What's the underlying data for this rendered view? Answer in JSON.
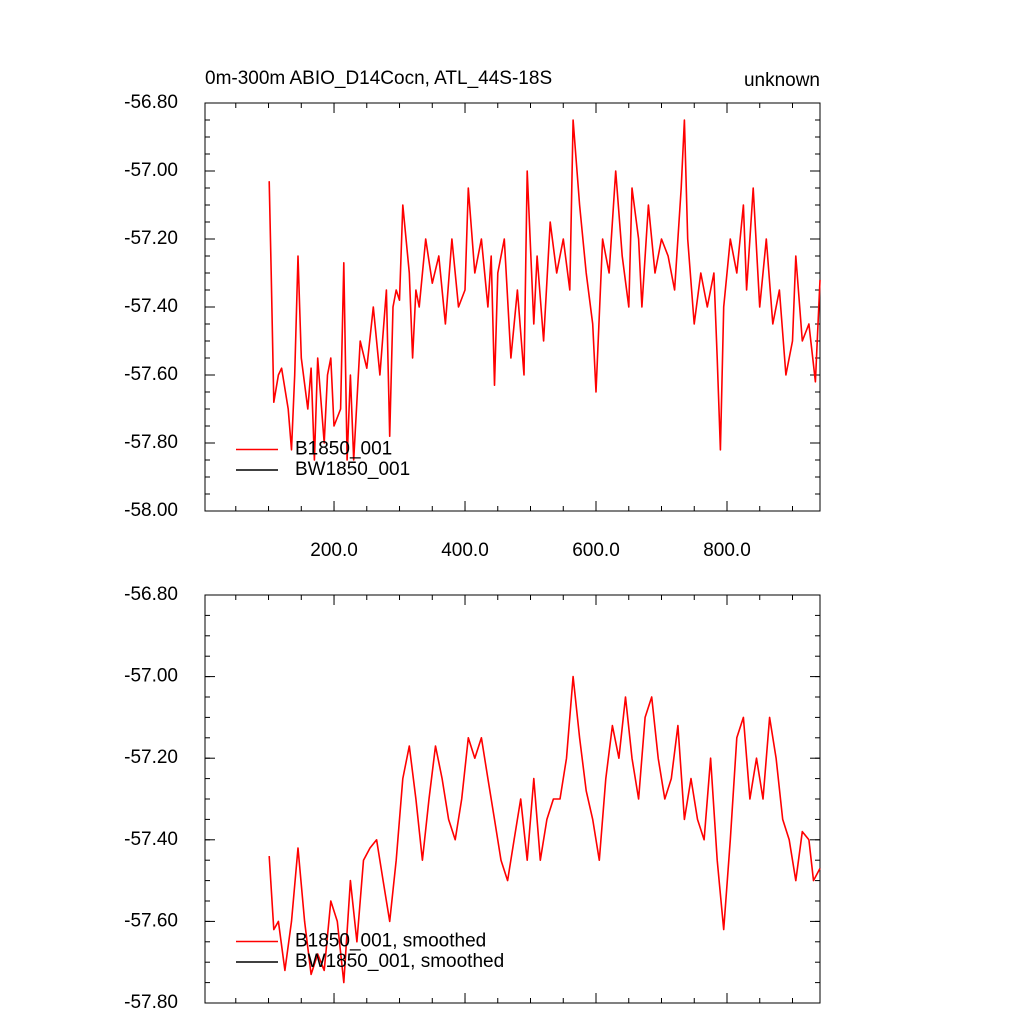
{
  "chart_data": [
    {
      "type": "line",
      "title": "0m-300m ABIO_D14Cocn, ATL_44S-18S",
      "right_title": "unknown",
      "xlim": [
        3,
        942
      ],
      "xticks": [
        {
          "value": 200,
          "label": "200.0"
        },
        {
          "value": 400,
          "label": "400.0"
        },
        {
          "value": 600,
          "label": "600.0"
        },
        {
          "value": 800,
          "label": "800.0"
        }
      ],
      "ylim": [
        -58.0,
        -56.8
      ],
      "yticks": [
        {
          "value": -58.0,
          "label": "-58.00"
        },
        {
          "value": -57.8,
          "label": "-57.80"
        },
        {
          "value": -57.6,
          "label": "-57.60"
        },
        {
          "value": -57.4,
          "label": "-57.40"
        },
        {
          "value": -57.2,
          "label": "-57.20"
        },
        {
          "value": -57.0,
          "label": "-57.00"
        },
        {
          "value": -56.8,
          "label": "-56.80"
        }
      ],
      "legend": "lower left",
      "x": [
        101,
        104,
        108,
        115,
        120,
        130,
        135,
        140,
        145,
        150,
        160,
        165,
        170,
        175,
        185,
        190,
        195,
        200,
        210,
        215,
        220,
        225,
        230,
        240,
        250,
        260,
        270,
        280,
        285,
        290,
        295,
        300,
        305,
        315,
        320,
        325,
        330,
        340,
        350,
        360,
        370,
        380,
        390,
        400,
        405,
        415,
        425,
        435,
        440,
        445,
        450,
        460,
        470,
        480,
        490,
        495,
        505,
        510,
        520,
        530,
        540,
        550,
        560,
        565,
        575,
        585,
        595,
        600,
        610,
        620,
        630,
        640,
        650,
        655,
        665,
        670,
        680,
        690,
        700,
        710,
        720,
        730,
        735,
        740,
        750,
        760,
        770,
        780,
        785,
        790,
        795,
        805,
        815,
        825,
        830,
        840,
        850,
        860,
        870,
        880,
        890,
        900,
        905,
        915,
        925,
        935,
        942
      ],
      "series": [
        {
          "name": "BW1850_001",
          "color": "#000000",
          "values": [
            null,
            null,
            null,
            null,
            null,
            null,
            null,
            null,
            null,
            null,
            null,
            null,
            null,
            null,
            null,
            null,
            null,
            null,
            null,
            null,
            null,
            null,
            null,
            null,
            null,
            null,
            null,
            null,
            null,
            null,
            null,
            null,
            null,
            null,
            null,
            null,
            null,
            null,
            null,
            null,
            null,
            null,
            null,
            null,
            null,
            null,
            null,
            null,
            null,
            null,
            null,
            null,
            null,
            null,
            null,
            null,
            null,
            null,
            null,
            null,
            null,
            null,
            null,
            null,
            null,
            null,
            null,
            null,
            null,
            null,
            null,
            null,
            null,
            null,
            null,
            null,
            null,
            null,
            null,
            null,
            null,
            null,
            null,
            null,
            null,
            null,
            null,
            null,
            null,
            null,
            null,
            null,
            null,
            null,
            null,
            null,
            null,
            null,
            null,
            null,
            null,
            null,
            null,
            null,
            null,
            null,
            null
          ]
        },
        {
          "name": "B1850_001",
          "color": "#ff0000",
          "values": [
            -57.03,
            -57.3,
            -57.68,
            -57.6,
            -57.58,
            -57.7,
            -57.82,
            -57.6,
            -57.25,
            -57.55,
            -57.7,
            -57.58,
            -57.85,
            -57.55,
            -57.8,
            -57.6,
            -57.55,
            -57.75,
            -57.7,
            -57.27,
            -57.85,
            -57.6,
            -57.85,
            -57.5,
            -57.58,
            -57.4,
            -57.6,
            -57.35,
            -57.78,
            -57.4,
            -57.35,
            -57.38,
            -57.1,
            -57.3,
            -57.55,
            -57.35,
            -57.4,
            -57.2,
            -57.33,
            -57.25,
            -57.45,
            -57.2,
            -57.4,
            -57.35,
            -57.05,
            -57.3,
            -57.2,
            -57.4,
            -57.25,
            -57.63,
            -57.3,
            -57.2,
            -57.55,
            -57.35,
            -57.6,
            -57.0,
            -57.45,
            -57.25,
            -57.5,
            -57.15,
            -57.3,
            -57.2,
            -57.35,
            -56.85,
            -57.1,
            -57.3,
            -57.45,
            -57.65,
            -57.2,
            -57.3,
            -57.0,
            -57.25,
            -57.4,
            -57.05,
            -57.2,
            -57.4,
            -57.1,
            -57.3,
            -57.2,
            -57.25,
            -57.35,
            -57.05,
            -56.85,
            -57.2,
            -57.45,
            -57.3,
            -57.4,
            -57.3,
            -57.55,
            -57.82,
            -57.4,
            -57.2,
            -57.3,
            -57.1,
            -57.35,
            -57.05,
            -57.4,
            -57.2,
            -57.45,
            -57.35,
            -57.6,
            -57.5,
            -57.25,
            -57.5,
            -57.45,
            -57.62,
            -57.32
          ]
        }
      ]
    },
    {
      "type": "line",
      "xlim": [
        3,
        942
      ],
      "ylim": [
        -57.8,
        -56.8
      ],
      "yticks": [
        {
          "value": -57.8,
          "label": "-57.80"
        },
        {
          "value": -57.6,
          "label": "-57.60"
        },
        {
          "value": -57.4,
          "label": "-57.40"
        },
        {
          "value": -57.2,
          "label": "-57.20"
        },
        {
          "value": -57.0,
          "label": "-57.00"
        },
        {
          "value": -56.8,
          "label": "-56.80"
        }
      ],
      "legend": "lower left",
      "x": [
        101,
        108,
        115,
        125,
        135,
        145,
        155,
        165,
        175,
        185,
        195,
        205,
        215,
        225,
        235,
        245,
        255,
        265,
        275,
        285,
        295,
        305,
        315,
        325,
        335,
        345,
        355,
        365,
        375,
        385,
        395,
        405,
        415,
        425,
        435,
        445,
        455,
        465,
        475,
        485,
        495,
        505,
        515,
        525,
        535,
        545,
        555,
        565,
        575,
        585,
        595,
        605,
        615,
        625,
        635,
        645,
        655,
        665,
        675,
        685,
        695,
        705,
        715,
        725,
        735,
        745,
        755,
        765,
        775,
        785,
        795,
        805,
        815,
        825,
        835,
        845,
        855,
        865,
        875,
        885,
        895,
        905,
        915,
        925,
        932,
        942
      ],
      "series": [
        {
          "name": "BW1850_001, smoothed",
          "color": "#000000",
          "values": [
            null,
            null,
            null,
            null,
            null,
            null,
            null,
            null,
            null,
            null,
            null,
            null,
            null,
            null,
            null,
            null,
            null,
            null,
            null,
            null,
            null,
            null,
            null,
            null,
            null,
            null,
            null,
            null,
            null,
            null,
            null,
            null,
            null,
            null,
            null,
            null,
            null,
            null,
            null,
            null,
            null,
            null,
            null,
            null,
            null,
            null,
            null,
            null,
            null,
            null,
            null,
            null,
            null,
            null,
            null,
            null,
            null,
            null,
            null,
            null,
            null,
            null,
            null,
            null,
            null,
            null,
            null,
            null,
            null,
            null,
            null,
            null,
            null,
            null,
            null,
            null,
            null,
            null,
            null,
            null,
            null,
            null,
            null,
            null,
            null,
            null
          ]
        },
        {
          "name": "B1850_001, smoothed",
          "color": "#ff0000",
          "values": [
            -57.44,
            -57.62,
            -57.6,
            -57.72,
            -57.6,
            -57.42,
            -57.6,
            -57.73,
            -57.68,
            -57.72,
            -57.55,
            -57.6,
            -57.75,
            -57.5,
            -57.65,
            -57.45,
            -57.42,
            -57.4,
            -57.5,
            -57.6,
            -57.45,
            -57.25,
            -57.17,
            -57.3,
            -57.45,
            -57.3,
            -57.17,
            -57.25,
            -57.35,
            -57.4,
            -57.3,
            -57.15,
            -57.2,
            -57.15,
            -57.25,
            -57.35,
            -57.45,
            -57.5,
            -57.4,
            -57.3,
            -57.45,
            -57.25,
            -57.45,
            -57.35,
            -57.3,
            -57.3,
            -57.2,
            -57.0,
            -57.15,
            -57.28,
            -57.35,
            -57.45,
            -57.25,
            -57.12,
            -57.2,
            -57.05,
            -57.2,
            -57.3,
            -57.1,
            -57.05,
            -57.2,
            -57.3,
            -57.25,
            -57.12,
            -57.35,
            -57.25,
            -57.35,
            -57.4,
            -57.2,
            -57.45,
            -57.62,
            -57.4,
            -57.15,
            -57.1,
            -57.3,
            -57.2,
            -57.3,
            -57.1,
            -57.2,
            -57.35,
            -57.4,
            -57.5,
            -57.38,
            -57.4,
            -57.5,
            -57.47
          ]
        }
      ]
    }
  ]
}
